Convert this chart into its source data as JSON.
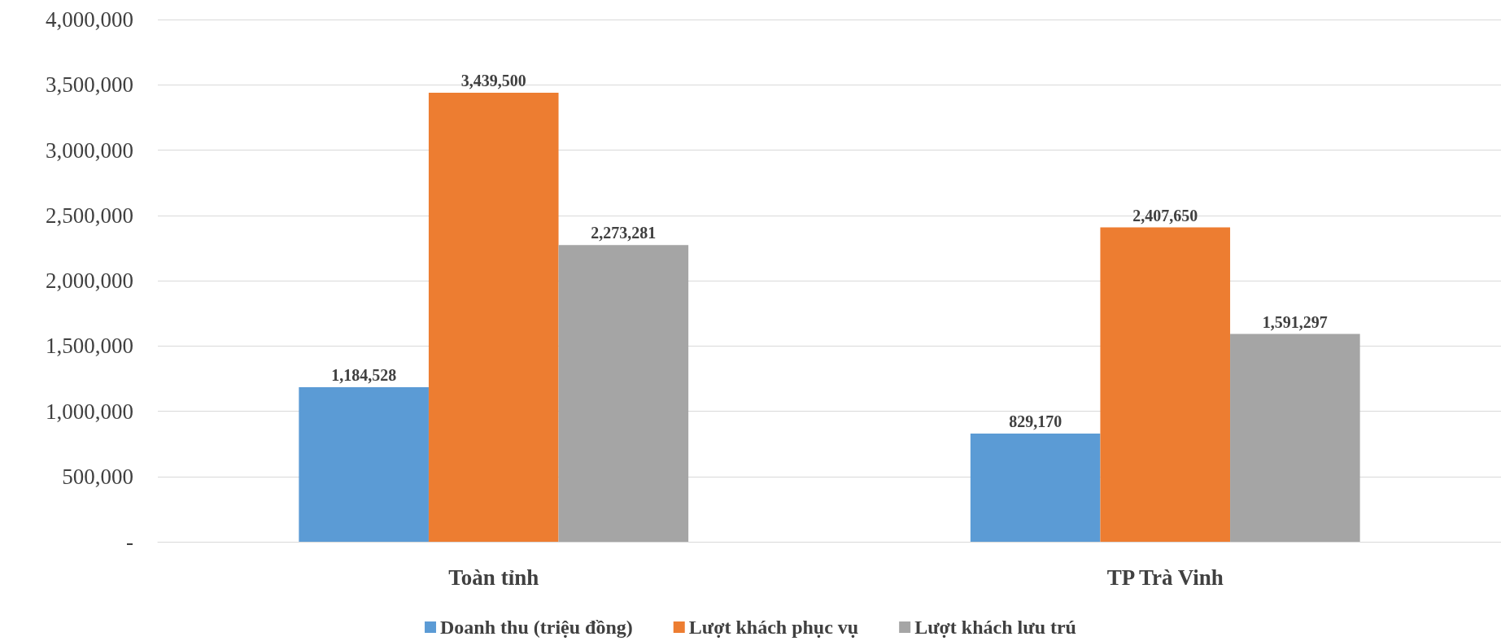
{
  "chart_data": {
    "type": "bar",
    "categories": [
      "Toàn tỉnh",
      "TP Trà Vinh"
    ],
    "series": [
      {
        "name": "Doanh thu (triệu đồng)",
        "color": "#5b9bd5",
        "values": [
          1184528,
          829170
        ],
        "value_labels": [
          "1,184,528",
          "829,170"
        ]
      },
      {
        "name": "Lượt khách phục vụ",
        "color": "#ed7d31",
        "values": [
          3439500,
          2407650
        ],
        "value_labels": [
          "3,439,500",
          "2,407,650"
        ]
      },
      {
        "name": "Lượt khách lưu trú",
        "color": "#a5a5a5",
        "values": [
          2273281,
          1591297
        ],
        "value_labels": [
          "2,273,281",
          "1,591,297"
        ]
      }
    ],
    "ylim": [
      0,
      4000000
    ],
    "yticks": [
      {
        "value": 0,
        "label": "-"
      },
      {
        "value": 500000,
        "label": "500,000"
      },
      {
        "value": 1000000,
        "label": "1,000,000"
      },
      {
        "value": 1500000,
        "label": "1,500,000"
      },
      {
        "value": 2000000,
        "label": "2,000,000"
      },
      {
        "value": 2500000,
        "label": "2,500,000"
      },
      {
        "value": 3000000,
        "label": "3,000,000"
      },
      {
        "value": 3500000,
        "label": "3,500,000"
      },
      {
        "value": 4000000,
        "label": "4,000,000"
      }
    ],
    "grid": "y",
    "legend": "bottom"
  }
}
